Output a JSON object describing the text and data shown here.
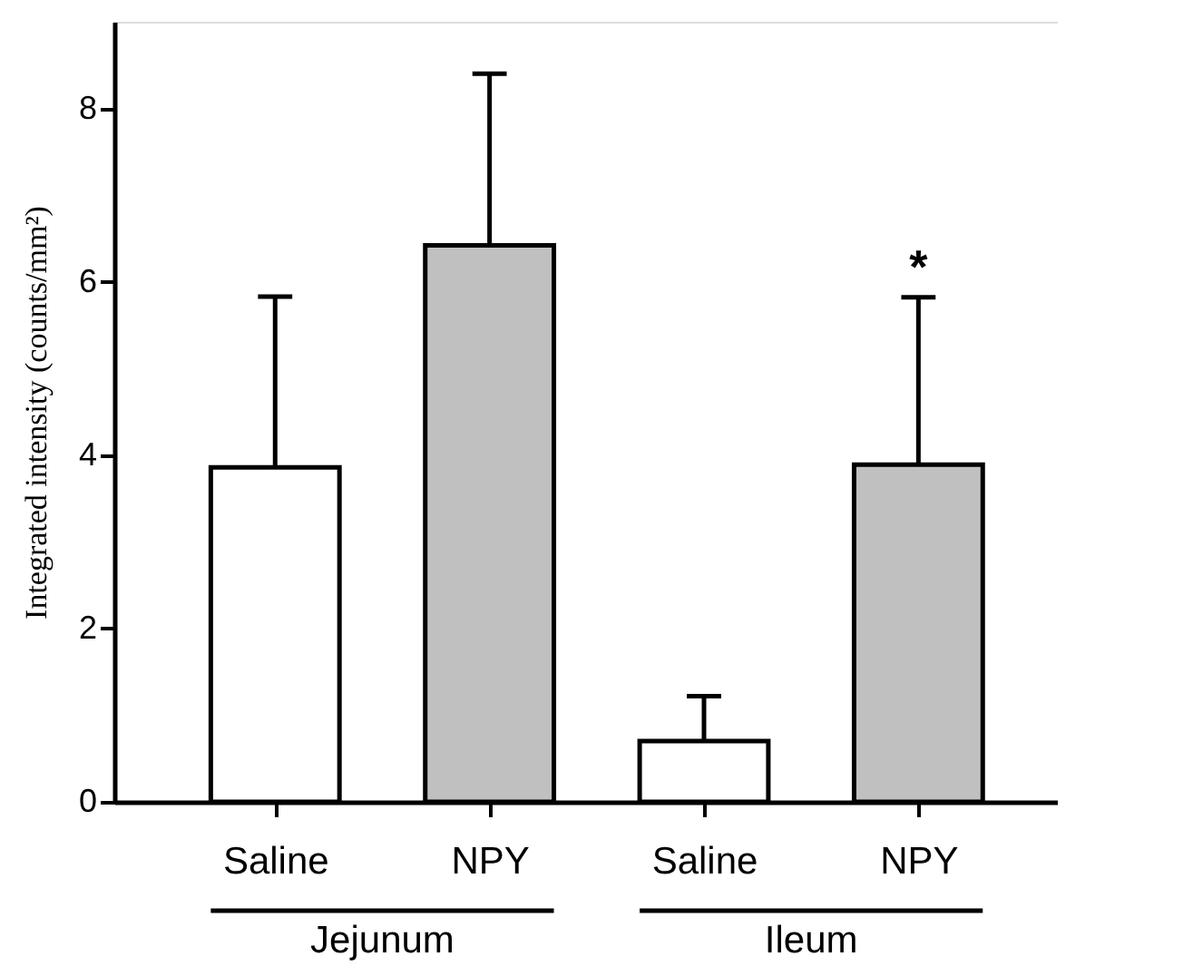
{
  "chart_data": {
    "type": "bar",
    "ylabel": "Integrated intensity (counts/mm²)",
    "categories": [
      "Saline",
      "NPY",
      "Saline",
      "NPY"
    ],
    "values": [
      3.86,
      6.42,
      0.7,
      3.89
    ],
    "colors": [
      "#ffffff",
      "#c0c0c0",
      "#ffffff",
      "#c0c0c0"
    ],
    "errors": [
      [
        3.86,
        5.83
      ],
      [
        6.42,
        8.4
      ],
      [
        0.7,
        1.22
      ],
      [
        3.89,
        5.82
      ]
    ],
    "annotations": [
      "Jejunum",
      "Ileum",
      "*"
    ],
    "ylim": [
      0,
      9
    ],
    "yticks": [
      0,
      2,
      4,
      6,
      8
    ],
    "grid": false
  }
}
